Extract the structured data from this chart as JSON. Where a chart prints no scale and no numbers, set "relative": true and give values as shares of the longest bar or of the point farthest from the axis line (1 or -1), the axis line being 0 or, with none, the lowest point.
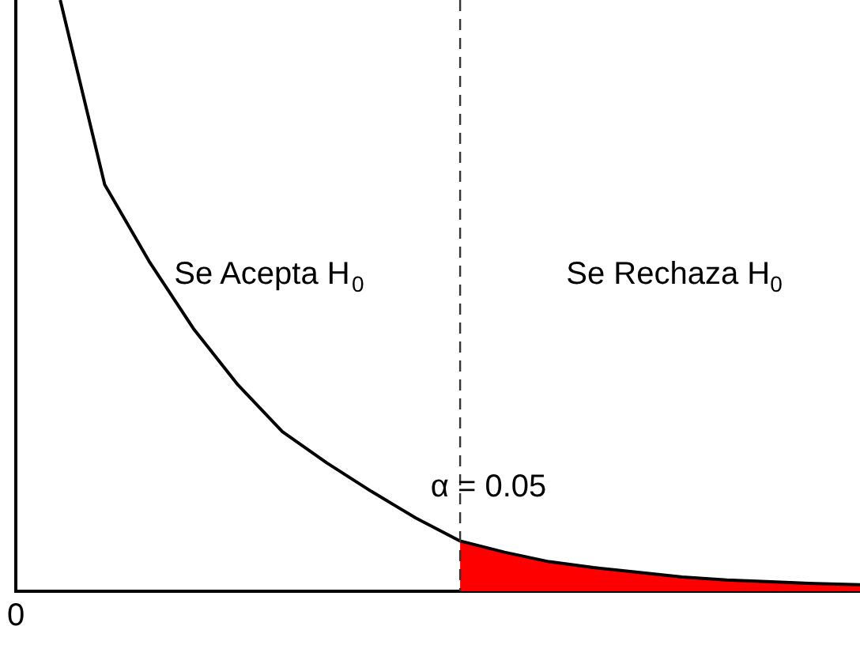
{
  "chart_data": {
    "type": "line",
    "relative": true,
    "categories": [
      null,
      null,
      null,
      null,
      null,
      null,
      null,
      null,
      null,
      null,
      null,
      null,
      null,
      null,
      null,
      null,
      null,
      null,
      null,
      null
    ],
    "grid": false,
    "legend": false,
    "marker": "none",
    "line_style": "solid",
    "annotations": [
      "Se Acepta H$_{0}$",
      "Se Rechaza H$_{0}$",
      "α = 0.05",
      "0"
    ],
    "series": [
      {
        "color": "#000000",
        "values": [
          null,
          1.0,
          0.688,
          0.558,
          0.444,
          0.349,
          0.27,
          0.217,
          0.169,
          0.124,
          0.085,
          0.066,
          0.05,
          0.04,
          0.032,
          0.024,
          0.019,
          0.016,
          0.013,
          0.011
        ]
      },
      {
        "type": "area",
        "color": "#ff0000",
        "values": [
          null,
          null,
          null,
          null,
          null,
          null,
          null,
          null,
          null,
          null,
          0.085,
          0.066,
          0.05,
          0.04,
          0.032,
          0.024,
          0.019,
          0.016,
          0.013,
          0.011
        ]
      }
    ]
  }
}
